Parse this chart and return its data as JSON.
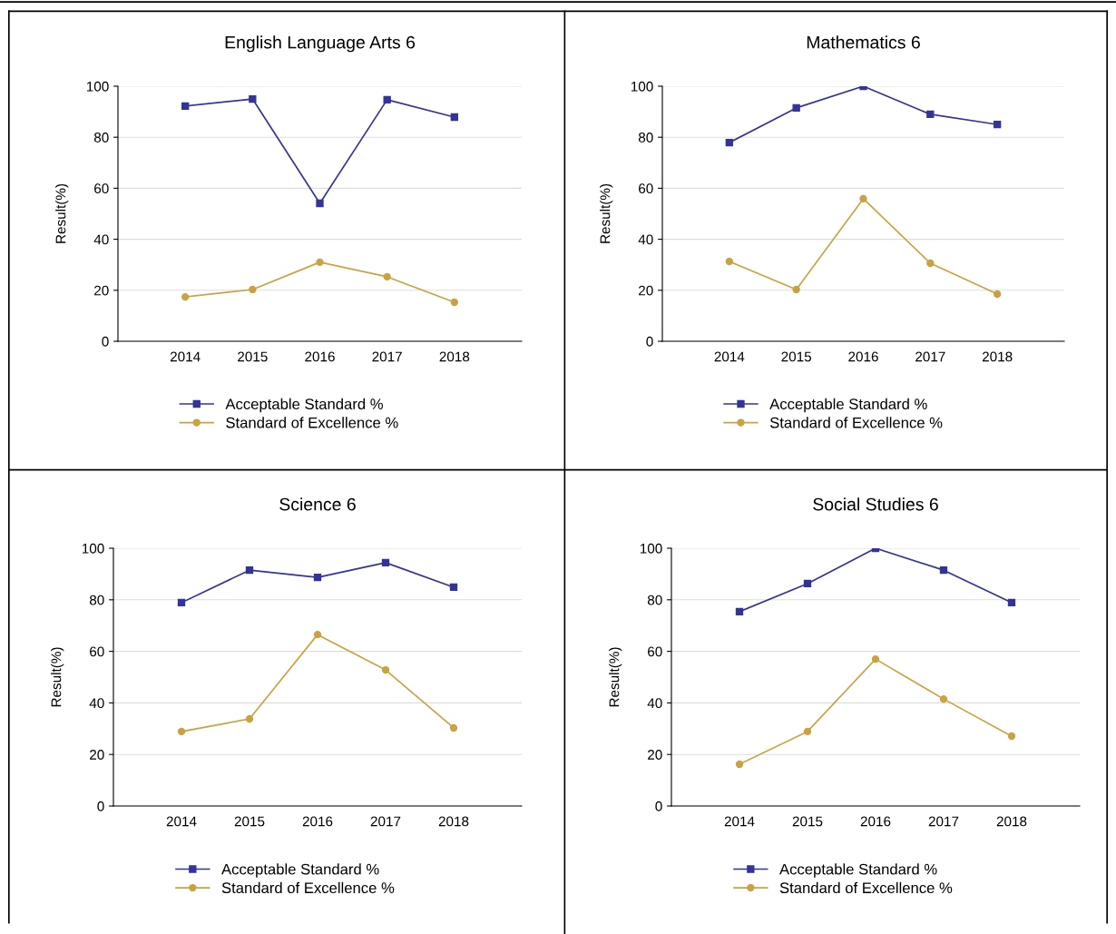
{
  "chart_data": [
    {
      "type": "line",
      "title": "English Language Arts 6",
      "ylabel": "Result(%)",
      "categories": [
        "2014",
        "2015",
        "2016",
        "2017",
        "2018"
      ],
      "ylim": [
        0,
        100
      ],
      "yticks": [
        0,
        20,
        40,
        60,
        80,
        100
      ],
      "grid": "y",
      "legend": "bottom",
      "series": [
        {
          "name": "Acceptable Standard %",
          "color": "#333399",
          "marker": "square",
          "values": [
            92.2,
            95.0,
            54.1,
            94.7,
            87.9
          ]
        },
        {
          "name": "Standard of Excellence %",
          "color": "#c9a341",
          "marker": "circle",
          "values": [
            17.4,
            20.3,
            31.0,
            25.3,
            15.3
          ]
        }
      ]
    },
    {
      "type": "line",
      "title": "Mathematics 6",
      "ylabel": "Result(%)",
      "categories": [
        "2014",
        "2015",
        "2016",
        "2017",
        "2018"
      ],
      "ylim": [
        0,
        100
      ],
      "yticks": [
        0,
        20,
        40,
        60,
        80,
        100
      ],
      "grid": "y",
      "legend": "bottom",
      "series": [
        {
          "name": "Acceptable Standard %",
          "color": "#333399",
          "marker": "square",
          "values": [
            77.9,
            91.5,
            100.0,
            89.0,
            85.0
          ]
        },
        {
          "name": "Standard of Excellence %",
          "color": "#c9a341",
          "marker": "circle",
          "values": [
            31.3,
            20.3,
            55.9,
            30.6,
            18.5
          ]
        }
      ]
    },
    {
      "type": "line",
      "title": "Science 6",
      "ylabel": "Result(%)",
      "categories": [
        "2014",
        "2015",
        "2016",
        "2017",
        "2018"
      ],
      "ylim": [
        0,
        100
      ],
      "yticks": [
        0,
        20,
        40,
        60,
        80,
        100
      ],
      "grid": "y",
      "legend": "bottom",
      "series": [
        {
          "name": "Acceptable Standard %",
          "color": "#333399",
          "marker": "square",
          "values": [
            78.9,
            91.5,
            88.7,
            94.4,
            84.9
          ]
        },
        {
          "name": "Standard of Excellence %",
          "color": "#c9a341",
          "marker": "circle",
          "values": [
            28.9,
            33.8,
            66.5,
            52.8,
            30.3
          ]
        }
      ]
    },
    {
      "type": "line",
      "title": "Social Studies 6",
      "ylabel": "Result(%)",
      "categories": [
        "2014",
        "2015",
        "2016",
        "2017",
        "2018"
      ],
      "ylim": [
        0,
        100
      ],
      "yticks": [
        0,
        20,
        40,
        60,
        80,
        100
      ],
      "grid": "y",
      "legend": "bottom",
      "series": [
        {
          "name": "Acceptable Standard %",
          "color": "#333399",
          "marker": "square",
          "values": [
            75.4,
            86.3,
            100.0,
            91.5,
            78.9
          ]
        },
        {
          "name": "Standard of Excellence %",
          "color": "#c9a341",
          "marker": "circle",
          "values": [
            16.2,
            28.9,
            57.0,
            41.5,
            27.1
          ]
        }
      ]
    }
  ]
}
